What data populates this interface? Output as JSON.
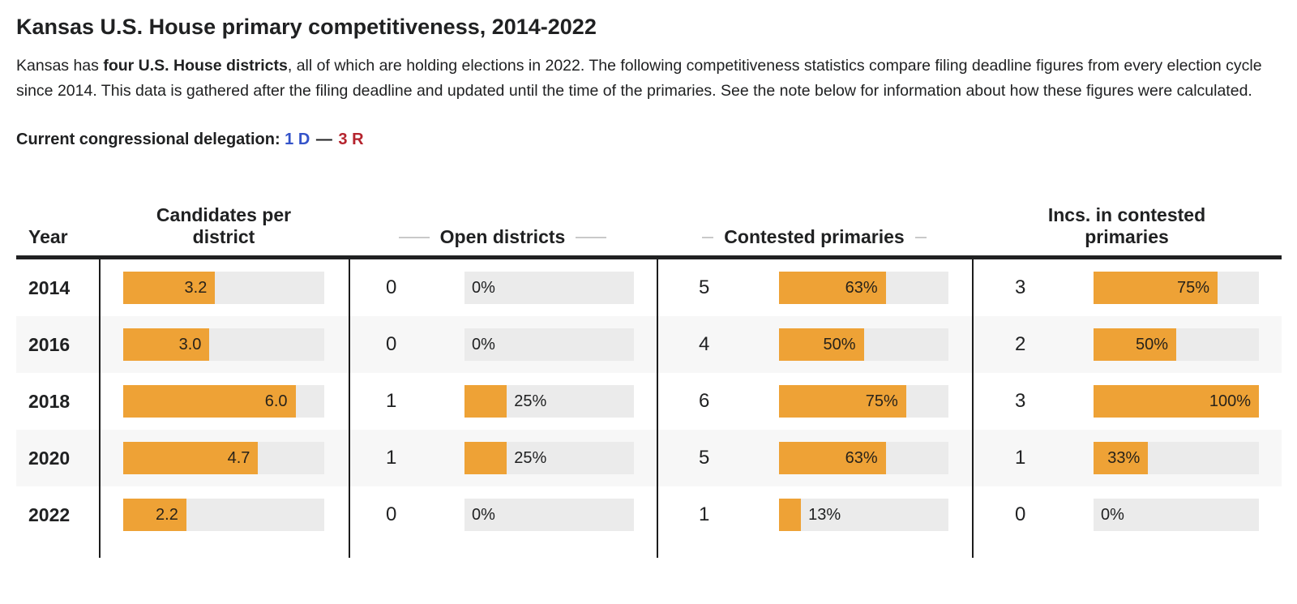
{
  "page": {
    "title": "Kansas U.S. House primary competitiveness, 2014-2022",
    "intro": {
      "before_bold": "Kansas has ",
      "bold": "four U.S. House districts",
      "after_bold": ", all of which are holding elections in 2022. The following competitiveness statistics compare filing deadline figures from every election cycle since 2014. This data is gathered after the filing deadline and updated until the time of the primaries. See the note below for information about how these figures were calculated."
    },
    "delegation": {
      "label": "Current congressional delegation:",
      "dem": "1 D",
      "separator": "—",
      "rep": "3 R"
    }
  },
  "colors": {
    "bar_orange": "#eea236",
    "bar_track_gray": "#ebebeb",
    "stripe_gray": "#f7f7f7",
    "dem_blue": "#3453c9",
    "rep_red": "#b5232d",
    "rule_black": "#1c1c1c"
  },
  "table": {
    "headers": {
      "year": "Year",
      "candidates": "Candidates per district",
      "open": "Open districts",
      "contested": "Contested primaries",
      "incs": "Incs. in contested primaries"
    },
    "bar_scale_note": "candidate bars scaled to max 7.0",
    "rows": [
      {
        "year": "2014",
        "striped": false,
        "candidates": {
          "label": "3.2",
          "pct": 45.7
        },
        "open": {
          "count": "0",
          "label": "0%",
          "pct": 0
        },
        "contested": {
          "count": "5",
          "label": "63%",
          "pct": 63
        },
        "incs": {
          "count": "3",
          "label": "75%",
          "pct": 75
        }
      },
      {
        "year": "2016",
        "striped": true,
        "candidates": {
          "label": "3.0",
          "pct": 42.9
        },
        "open": {
          "count": "0",
          "label": "0%",
          "pct": 0
        },
        "contested": {
          "count": "4",
          "label": "50%",
          "pct": 50
        },
        "incs": {
          "count": "2",
          "label": "50%",
          "pct": 50
        }
      },
      {
        "year": "2018",
        "striped": false,
        "candidates": {
          "label": "6.0",
          "pct": 85.7
        },
        "open": {
          "count": "1",
          "label": "25%",
          "pct": 25
        },
        "contested": {
          "count": "6",
          "label": "75%",
          "pct": 75
        },
        "incs": {
          "count": "3",
          "label": "100%",
          "pct": 100
        }
      },
      {
        "year": "2020",
        "striped": true,
        "candidates": {
          "label": "4.7",
          "pct": 67.1
        },
        "open": {
          "count": "1",
          "label": "25%",
          "pct": 25
        },
        "contested": {
          "count": "5",
          "label": "63%",
          "pct": 63
        },
        "incs": {
          "count": "1",
          "label": "33%",
          "pct": 33
        }
      },
      {
        "year": "2022",
        "striped": false,
        "candidates": {
          "label": "2.2",
          "pct": 31.4
        },
        "open": {
          "count": "0",
          "label": "0%",
          "pct": 0
        },
        "contested": {
          "count": "1",
          "label": "13%",
          "pct": 13
        },
        "incs": {
          "count": "0",
          "label": "0%",
          "pct": 0
        }
      }
    ]
  },
  "chart_data": {
    "type": "table",
    "title": "Kansas U.S. House primary competitiveness, 2014-2022",
    "categories": [
      "2014",
      "2016",
      "2018",
      "2020",
      "2022"
    ],
    "series": [
      {
        "name": "Candidates per district",
        "values": [
          3.2,
          3.0,
          6.0,
          4.7,
          2.2
        ],
        "bar_axis_max": 7.0
      },
      {
        "name": "Open districts (count)",
        "values": [
          0,
          0,
          1,
          1,
          0
        ]
      },
      {
        "name": "Open districts (%)",
        "values": [
          0,
          0,
          25,
          25,
          0
        ]
      },
      {
        "name": "Contested primaries (count)",
        "values": [
          5,
          4,
          6,
          5,
          1
        ]
      },
      {
        "name": "Contested primaries (%)",
        "values": [
          63,
          50,
          75,
          63,
          13
        ]
      },
      {
        "name": "Incumbents in contested primaries (count)",
        "values": [
          3,
          2,
          3,
          1,
          0
        ]
      },
      {
        "name": "Incumbents in contested primaries (%)",
        "values": [
          75,
          50,
          100,
          33,
          0
        ]
      }
    ],
    "legend_position": "none",
    "grid": false
  }
}
